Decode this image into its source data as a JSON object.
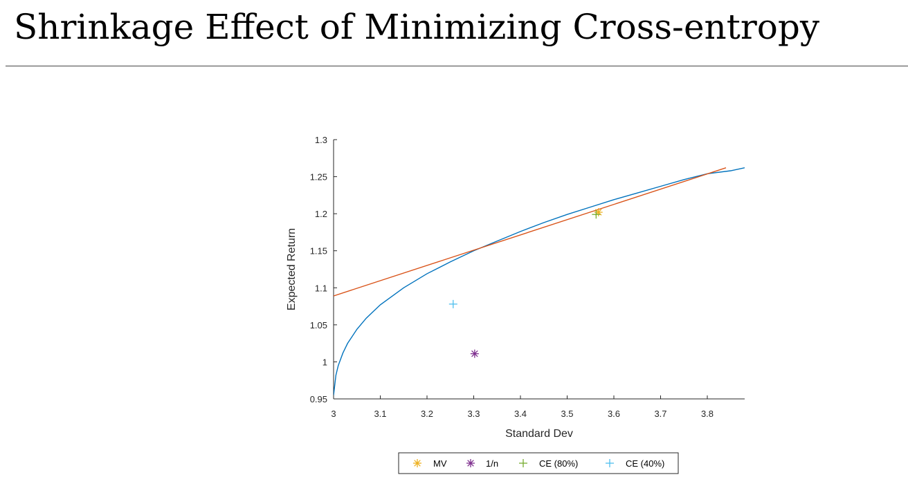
{
  "page": {
    "title": "Shrinkage Effect of Minimizing Cross-entropy"
  },
  "chart_data": {
    "type": "line",
    "title": "",
    "xlabel": "Standard Dev",
    "ylabel": "Expected Return",
    "xlim": [
      3.0,
      3.88
    ],
    "ylim": [
      0.95,
      1.3
    ],
    "xticks": [
      3,
      3.1,
      3.2,
      3.3,
      3.4,
      3.5,
      3.6,
      3.7,
      3.8
    ],
    "xtick_labels": [
      "3",
      "3.1",
      "3.2",
      "3.3",
      "3.4",
      "3.5",
      "3.6",
      "3.7",
      "3.8"
    ],
    "yticks": [
      0.95,
      1.0,
      1.05,
      1.1,
      1.15,
      1.2,
      1.25,
      1.3
    ],
    "ytick_labels": [
      "0.95",
      "1",
      "1.05",
      "1.1",
      "1.15",
      "1.2",
      "1.25",
      "1.3"
    ],
    "grid": false,
    "legend_position": "bottom-outside",
    "series": [
      {
        "kind": "line",
        "color": "#0072bd",
        "x": [
          3.0,
          3.005,
          3.01,
          3.02,
          3.03,
          3.05,
          3.07,
          3.1,
          3.15,
          3.2,
          3.25,
          3.3,
          3.35,
          3.4,
          3.45,
          3.5,
          3.55,
          3.6,
          3.65,
          3.7,
          3.75,
          3.8,
          3.85,
          3.88
        ],
        "y": [
          0.955,
          0.982,
          0.995,
          1.012,
          1.025,
          1.044,
          1.059,
          1.077,
          1.1,
          1.119,
          1.135,
          1.15,
          1.163,
          1.176,
          1.188,
          1.199,
          1.209,
          1.219,
          1.228,
          1.237,
          1.246,
          1.254,
          1.258,
          1.262
        ]
      },
      {
        "kind": "line",
        "color": "#d95319",
        "x": [
          3.0,
          3.84
        ],
        "y": [
          1.089,
          1.262
        ]
      },
      {
        "name": "MV",
        "kind": "marker",
        "marker": "asterisk",
        "color": "#edb120",
        "x": [
          3.567
        ],
        "y": [
          1.202
        ]
      },
      {
        "name": "1/n",
        "kind": "marker",
        "marker": "asterisk",
        "color": "#7e2f8e",
        "x": [
          3.302
        ],
        "y": [
          1.011
        ]
      },
      {
        "name": "CE (80%)",
        "kind": "marker",
        "marker": "plus",
        "color": "#77ac30",
        "x": [
          3.562
        ],
        "y": [
          1.199
        ]
      },
      {
        "name": "CE (40%)",
        "kind": "marker",
        "marker": "plus",
        "color": "#4dbeee",
        "x": [
          3.256
        ],
        "y": [
          1.078
        ]
      }
    ]
  }
}
